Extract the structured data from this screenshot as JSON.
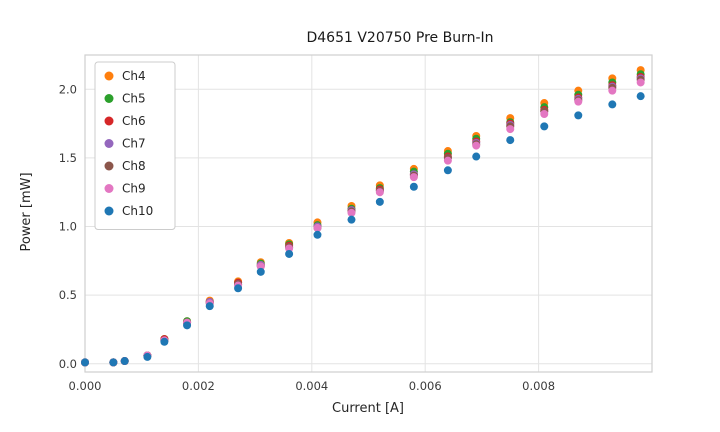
{
  "chart_data": {
    "type": "scatter",
    "title": "D4651 V20750 Pre Burn-In",
    "xlabel": "Current [A]",
    "ylabel": "Power [mW]",
    "xlim": [
      0,
      0.01
    ],
    "ylim": [
      -0.06,
      2.25
    ],
    "grid": true,
    "legend_position": "upper left",
    "xticks": {
      "values": [
        0,
        0.002,
        0.004,
        0.006,
        0.008
      ],
      "labels": [
        "0.000",
        "0.002",
        "0.004",
        "0.006",
        "0.008"
      ]
    },
    "yticks": {
      "values": [
        0,
        0.5,
        1.0,
        1.5,
        2.0
      ],
      "labels": [
        "0.0",
        "0.5",
        "1.0",
        "1.5",
        "2.0"
      ]
    },
    "x": [
      0.0,
      0.0005,
      0.0007,
      0.0011,
      0.0014,
      0.0018,
      0.0022,
      0.0027,
      0.0031,
      0.0036,
      0.0041,
      0.0047,
      0.0052,
      0.0058,
      0.0064,
      0.0069,
      0.0075,
      0.0081,
      0.0087,
      0.0093,
      0.0098
    ],
    "series": [
      {
        "name": "Ch4",
        "color": "#ff7f0e",
        "values": [
          0.01,
          0.01,
          0.02,
          0.06,
          0.18,
          0.31,
          0.46,
          0.6,
          0.74,
          0.88,
          1.03,
          1.15,
          1.3,
          1.42,
          1.55,
          1.66,
          1.79,
          1.9,
          1.99,
          2.08,
          2.14
        ]
      },
      {
        "name": "Ch5",
        "color": "#2ca02c",
        "values": [
          0.01,
          0.01,
          0.02,
          0.06,
          0.18,
          0.31,
          0.45,
          0.59,
          0.73,
          0.87,
          1.01,
          1.13,
          1.28,
          1.4,
          1.53,
          1.64,
          1.76,
          1.87,
          1.96,
          2.05,
          2.11
        ]
      },
      {
        "name": "Ch6",
        "color": "#d62728",
        "values": [
          0.01,
          0.01,
          0.02,
          0.06,
          0.18,
          0.3,
          0.45,
          0.59,
          0.72,
          0.86,
          1.0,
          1.12,
          1.27,
          1.38,
          1.51,
          1.62,
          1.75,
          1.85,
          1.94,
          2.03,
          2.09
        ]
      },
      {
        "name": "Ch7",
        "color": "#9467bd",
        "values": [
          0.01,
          0.01,
          0.02,
          0.06,
          0.17,
          0.3,
          0.45,
          0.58,
          0.72,
          0.85,
          1.0,
          1.12,
          1.26,
          1.38,
          1.5,
          1.61,
          1.74,
          1.84,
          1.93,
          2.02,
          2.08
        ]
      },
      {
        "name": "Ch8",
        "color": "#8c564b",
        "values": [
          0.01,
          0.01,
          0.02,
          0.06,
          0.17,
          0.3,
          0.44,
          0.58,
          0.71,
          0.85,
          0.99,
          1.11,
          1.26,
          1.37,
          1.5,
          1.6,
          1.73,
          1.84,
          1.92,
          2.01,
          2.07
        ]
      },
      {
        "name": "Ch9",
        "color": "#e377c2",
        "values": [
          0.01,
          0.01,
          0.02,
          0.06,
          0.17,
          0.3,
          0.44,
          0.57,
          0.71,
          0.84,
          0.99,
          1.1,
          1.25,
          1.36,
          1.48,
          1.59,
          1.71,
          1.82,
          1.91,
          1.99,
          2.05
        ]
      },
      {
        "name": "Ch10",
        "color": "#1f77b4",
        "values": [
          0.01,
          0.01,
          0.02,
          0.05,
          0.16,
          0.28,
          0.42,
          0.55,
          0.67,
          0.8,
          0.94,
          1.05,
          1.18,
          1.29,
          1.41,
          1.51,
          1.63,
          1.73,
          1.81,
          1.89,
          1.95
        ]
      }
    ],
    "style": {
      "grid_color": "#e3e3e3",
      "frame_color": "#cfcfcf",
      "plot_bg": "#ffffff",
      "marker_radius": 4
    }
  }
}
